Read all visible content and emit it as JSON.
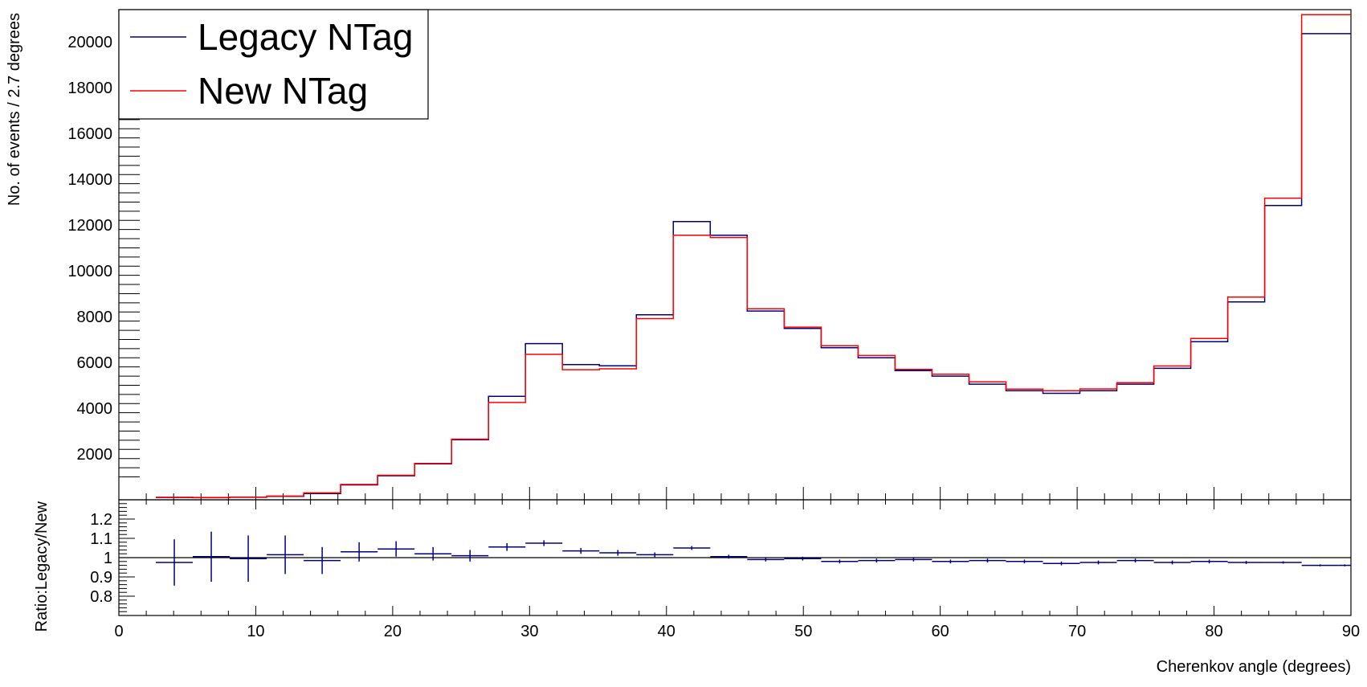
{
  "chart_data": [
    {
      "type": "histogram-step",
      "panel": "top",
      "title": "",
      "xlabel": "",
      "ylabel": "No. of events / 2.7 degrees",
      "xlim": [
        0,
        90
      ],
      "ylim": [
        0,
        21400
      ],
      "yticks": [
        2000,
        4000,
        6000,
        8000,
        10000,
        12000,
        14000,
        16000,
        18000,
        20000
      ],
      "ytick_labels": [
        "2000",
        "4000",
        "6000",
        "8000",
        "10000",
        "12000",
        "14000",
        "16000",
        "18000",
        "20000"
      ],
      "grid": false,
      "legend_position": "top-left",
      "bin_edges": [
        2.7,
        5.4,
        8.1,
        10.8,
        13.5,
        16.2,
        18.9,
        21.6,
        24.3,
        27.0,
        29.7,
        32.4,
        35.1,
        37.8,
        40.5,
        43.2,
        45.9,
        48.6,
        51.3,
        54.0,
        56.7,
        59.4,
        62.1,
        64.8,
        67.5,
        70.2,
        72.9,
        75.6,
        78.3,
        81.0,
        83.7,
        86.4,
        89.1,
        90.0
      ],
      "series": [
        {
          "name": "Legacy NTag",
          "color": "#00007f",
          "values": [
            100,
            90,
            110,
            150,
            270,
            650,
            1050,
            1570,
            2620,
            4520,
            6820,
            5900,
            5850,
            8080,
            12150,
            11550,
            8240,
            7480,
            6640,
            6200,
            5640,
            5400,
            5050,
            4760,
            4650,
            4760,
            5050,
            5740,
            6900,
            8640,
            12850,
            20350,
            20350
          ]
        },
        {
          "name": "New NTag",
          "color": "#ff0000",
          "values": [
            110,
            100,
            120,
            160,
            300,
            670,
            1070,
            1590,
            2650,
            4250,
            6350,
            5680,
            5720,
            7910,
            11550,
            11450,
            8340,
            7540,
            6730,
            6300,
            5690,
            5480,
            5150,
            4830,
            4760,
            4840,
            5110,
            5840,
            7040,
            8850,
            13170,
            21180,
            21180
          ]
        }
      ]
    },
    {
      "type": "scatter-errorbar",
      "panel": "bottom",
      "title": "",
      "xlabel": "Cherenkov angle (degrees)",
      "ylabel": "Ratio:Legacy/New",
      "xlim": [
        0,
        90
      ],
      "ylim": [
        0.7,
        1.3
      ],
      "yticks": [
        0.8,
        0.9,
        1.0,
        1.1,
        1.2
      ],
      "ytick_labels": [
        "0.8",
        "0.9",
        "1",
        "1.1",
        "1.2"
      ],
      "xticks": [
        0,
        10,
        20,
        30,
        40,
        50,
        60,
        70,
        80,
        90
      ],
      "xtick_labels": [
        "0",
        "10",
        "20",
        "30",
        "40",
        "50",
        "60",
        "70",
        "80",
        "90"
      ],
      "reference_line": 1.0,
      "series": [
        {
          "name": "Ratio",
          "color": "#00007f",
          "x": [
            4.05,
            6.75,
            9.45,
            12.15,
            14.85,
            17.55,
            20.25,
            22.95,
            25.65,
            28.35,
            31.05,
            33.75,
            36.45,
            39.15,
            41.85,
            44.55,
            47.25,
            49.95,
            52.65,
            55.35,
            58.05,
            60.75,
            63.45,
            66.15,
            68.85,
            71.55,
            74.25,
            76.95,
            79.65,
            82.35,
            85.05,
            87.75,
            89.55
          ],
          "xerr": [
            1.35,
            1.35,
            1.35,
            1.35,
            1.35,
            1.35,
            1.35,
            1.35,
            1.35,
            1.35,
            1.35,
            1.35,
            1.35,
            1.35,
            1.35,
            1.35,
            1.35,
            1.35,
            1.35,
            1.35,
            1.35,
            1.35,
            1.35,
            1.35,
            1.35,
            1.35,
            1.35,
            1.35,
            1.35,
            1.35,
            1.35,
            1.35,
            0.45
          ],
          "y": [
            0.975,
            1.005,
            0.995,
            1.015,
            0.985,
            1.03,
            1.045,
            1.02,
            1.01,
            1.055,
            1.075,
            1.035,
            1.025,
            1.015,
            1.05,
            1.005,
            0.99,
            0.995,
            0.98,
            0.985,
            0.99,
            0.98,
            0.985,
            0.98,
            0.97,
            0.975,
            0.985,
            0.975,
            0.98,
            0.975,
            0.975,
            0.96,
            0.96
          ],
          "yerr": [
            0.12,
            0.13,
            0.12,
            0.1,
            0.07,
            0.05,
            0.04,
            0.035,
            0.03,
            0.02,
            0.015,
            0.015,
            0.015,
            0.012,
            0.01,
            0.01,
            0.01,
            0.01,
            0.01,
            0.01,
            0.01,
            0.01,
            0.01,
            0.01,
            0.01,
            0.01,
            0.01,
            0.01,
            0.01,
            0.008,
            0.006,
            0.005,
            0.005
          ]
        }
      ]
    }
  ]
}
